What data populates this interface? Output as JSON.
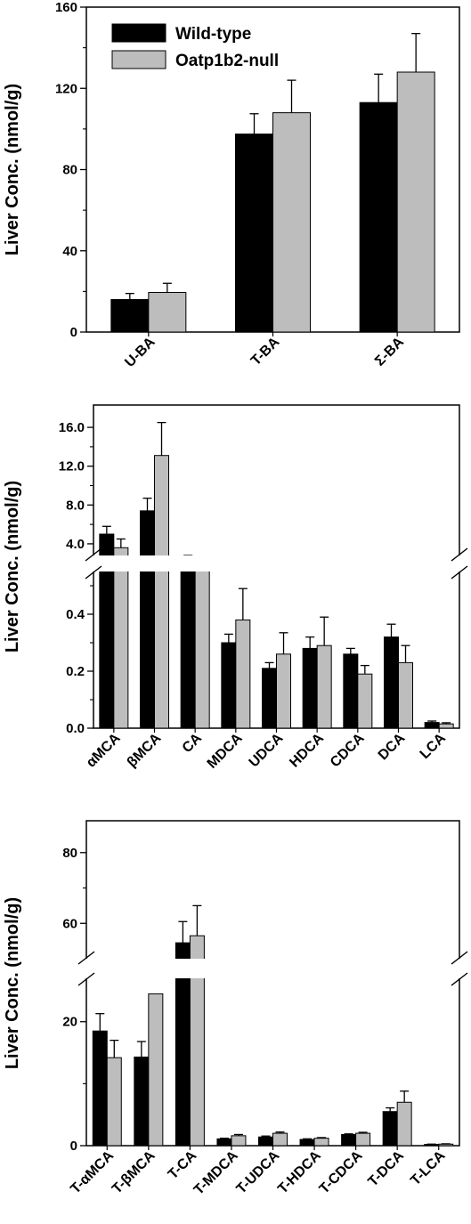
{
  "chart_data": [
    {
      "type": "bar",
      "ylabel": "Liver Conc. (nmol/g)",
      "categories": [
        "U-BA",
        "T-BA",
        "Σ-BA"
      ],
      "series": [
        {
          "name": "Wild-type",
          "color": "#000000",
          "values": [
            16,
            97.5,
            113
          ],
          "errors": [
            3,
            10,
            14
          ]
        },
        {
          "name": "Oatp1b2-null",
          "color": "#bdbdbd",
          "values": [
            19.5,
            108,
            128
          ],
          "errors": [
            4.5,
            16,
            19
          ]
        }
      ],
      "yticks": [
        "0",
        "40",
        "80",
        "120",
        "160"
      ],
      "ylim": [
        0,
        160
      ],
      "legend": "top-left"
    },
    {
      "type": "bar",
      "ylabel": "Liver Conc. (nmol/g)",
      "categories": [
        "αMCA",
        "βMCA",
        "CA",
        "MDCA",
        "UDCA",
        "HDCA",
        "CDCA",
        "DCA",
        "LCA"
      ],
      "series": [
        {
          "name": "Wild-type",
          "color": "#000000",
          "values": [
            5.0,
            7.4,
            2.2,
            0.3,
            0.21,
            0.28,
            0.26,
            0.32,
            0.02
          ],
          "errors": [
            0.8,
            1.3,
            0.6,
            0.03,
            0.02,
            0.04,
            0.02,
            0.045,
            0.005
          ]
        },
        {
          "name": "Oatp1b2-null",
          "color": "#bdbdbd",
          "values": [
            3.6,
            13.1,
            1.8,
            0.38,
            0.26,
            0.29,
            0.19,
            0.23,
            0.015
          ],
          "errors": [
            0.9,
            3.4,
            0.4,
            0.11,
            0.075,
            0.1,
            0.03,
            0.06,
            0.004
          ]
        }
      ],
      "upper_yticks": [
        "4.0",
        "8.0",
        "12.0",
        "16.0"
      ],
      "lower_yticks": [
        "0.0",
        "0.2",
        "0.4"
      ],
      "broken_axis": true
    },
    {
      "type": "bar",
      "ylabel": "Liver Conc. (nmol/g)",
      "categories": [
        "T-αMCA",
        "T-βMCA",
        "T-CA",
        "T-MDCA",
        "T-UDCA",
        "T-HDCA",
        "T-CDCA",
        "T-DCA",
        "T-LCA"
      ],
      "series": [
        {
          "name": "Wild-type",
          "color": "#000000",
          "values": [
            18.5,
            14.3,
            54.5,
            1.1,
            1.4,
            1.0,
            1.8,
            5.5,
            0.2
          ],
          "errors": [
            2.8,
            2.5,
            6,
            0.1,
            0.15,
            0.1,
            0.1,
            0.6,
            0.05
          ]
        },
        {
          "name": "Oatp1b2-null",
          "color": "#bdbdbd",
          "values": [
            14.2,
            24.5,
            56.5,
            1.6,
            2.0,
            1.2,
            2.0,
            7.0,
            0.25
          ],
          "errors": [
            2.8,
            4.5,
            8.5,
            0.2,
            0.2,
            0.1,
            0.15,
            1.8,
            0.05
          ]
        }
      ],
      "upper_yticks": [
        "60",
        "80"
      ],
      "lower_yticks": [
        "0",
        "20"
      ],
      "broken_axis": true
    }
  ]
}
